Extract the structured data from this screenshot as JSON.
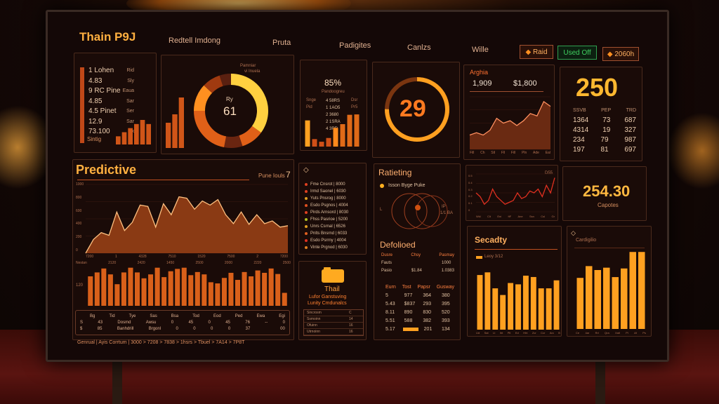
{
  "header": {
    "title": "Thain P9J",
    "nav": [
      "Redtell Imdong",
      "Pruta",
      "Padigites",
      "Canlzs",
      "Wille"
    ],
    "buttons": [
      {
        "label": "Raid",
        "icon": "diamond-icon"
      },
      {
        "label": "Used Off"
      },
      {
        "label": "2060h",
        "icon": "diamond-icon"
      }
    ]
  },
  "colors": {
    "accent": "#ff8a1c",
    "yellow": "#ffc533",
    "bar": "#e0661a",
    "green": "#36c060",
    "bg": "#140807"
  },
  "listA": {
    "rows": [
      [
        "1 Lohen",
        "Rid"
      ],
      [
        "4.83",
        "Sly"
      ],
      [
        "9 RC Pine",
        "Eaua"
      ],
      [
        "4.85",
        "Sar"
      ],
      [
        "4.5 Pinet",
        "Ser"
      ],
      [
        "12.9",
        "Sar"
      ],
      [
        "73.100",
        "Ex"
      ]
    ],
    "footer": "Sintig",
    "bars": [
      2,
      3,
      4,
      5,
      6,
      5
    ]
  },
  "donutB": {
    "caption": "Pamniar",
    "caption2": "vi Inuela",
    "label": "Ry",
    "value": "61",
    "bars": [
      3,
      4,
      6
    ],
    "slices": [
      35,
      10,
      8,
      22,
      12,
      8,
      5
    ]
  },
  "widgetC": {
    "value": "85%",
    "subtitle": "Pandoogreu",
    "left": [
      "Snge",
      "Pid"
    ],
    "right": [
      "Dsr",
      "Pr5"
    ],
    "rows": [
      "4 58RS",
      "1 1AO5",
      "2 3680",
      "2 1SRA",
      "4 3RR"
    ],
    "bars": [
      7,
      2,
      1.3,
      2.3,
      5,
      6,
      8.5,
      8.6
    ]
  },
  "ring": {
    "value": "29",
    "fraction": 0.75
  },
  "widgetE": {
    "title": "Arghia",
    "left": "1,909",
    "right": "$1,800",
    "series": [
      3,
      3.5,
      3,
      4,
      6.5,
      5.5,
      6,
      5,
      6,
      7.5,
      7,
      10,
      9
    ],
    "ticks": [
      "Fill",
      "Ch",
      "Stl",
      "Fll",
      "Fill",
      "Pln",
      "Ade",
      "Eal"
    ]
  },
  "widgetF": {
    "value": "250",
    "headers": [
      "SSVB",
      "PEP",
      "TRD"
    ],
    "rows": [
      [
        "1364",
        "73",
        "687"
      ],
      [
        "4314",
        "19",
        "327"
      ],
      [
        "234",
        "79",
        "987"
      ],
      [
        "197",
        "81",
        "697"
      ]
    ]
  },
  "predictive": {
    "title": "Predictive",
    "note": "Pune Iouls",
    "note_value": "7",
    "yticks": [
      "1000",
      "800",
      "600",
      "400",
      "200",
      "0"
    ],
    "series": [
      0,
      200,
      300,
      260,
      600,
      330,
      450,
      700,
      680,
      380,
      720,
      560,
      820,
      800,
      640,
      760,
      700,
      780,
      560,
      430,
      600,
      420,
      560,
      430,
      470,
      380,
      400
    ],
    "xticks": [
      "7200",
      "1",
      "4328",
      "7510",
      "1520",
      "7500",
      "2",
      "7200"
    ],
    "xticks2": [
      "Nestan",
      "2120",
      "2420",
      "1450",
      "2500",
      "2000",
      "2220",
      "2500"
    ],
    "bar_ytick": "120",
    "bars": [
      75,
      85,
      95,
      80,
      55,
      85,
      97,
      85,
      70,
      80,
      97,
      73,
      88,
      94,
      97,
      78,
      86,
      80,
      60,
      57,
      71,
      84,
      66,
      86,
      75,
      90,
      84,
      95,
      81,
      33
    ],
    "table": {
      "headers": [
        "Bg",
        "Tid",
        "Tye",
        "Sas",
        "Bsa",
        "Tod",
        "Eod",
        "Ped",
        "Ewa",
        "Egi"
      ],
      "rows": [
        [
          "S",
          "43",
          "Dosmd",
          "Awsu",
          "0",
          "45",
          "0",
          "45",
          "76",
          "--",
          "0"
        ],
        [
          "$",
          "85",
          "Banhdrill",
          "Brgonl",
          "0",
          "0",
          "0",
          "0",
          "37",
          "",
          "00"
        ]
      ]
    },
    "footer": "Genrual | Ayis Corrtum | 3000 > 7208 > 7838 > 1hsrs > Tbuel > 7A14 > 7P8T"
  },
  "listG": {
    "rows": [
      "Fme Cnsrot | 8000",
      "Irmd Saonel | 6030",
      "Yuts Pnsrog | 8000",
      "Esdo Psgnos | 4004",
      "Pirds Arnsord | 8030",
      "Fhss Pasrioe | 5200",
      "Unrs Csrnal | 6526",
      "Pnlts Bnsrnd | 6033",
      "Esdo Psrrny | 4004",
      "Vinte Prgnod | 6030"
    ],
    "dots": [
      "#e04020",
      "#e04020",
      "#e0a020",
      "#e05020",
      "#e04020",
      "#b0c020",
      "#e0a020",
      "#e06020",
      "#e03020",
      "#e08020"
    ]
  },
  "ratieting": {
    "title": "Ratieting",
    "legend": "Isson Byge Puke",
    "left": "L",
    "right": "IP",
    "right2": "1/1 BA"
  },
  "defolioed": {
    "title": "Defolioed",
    "headers": [
      "Dusre",
      "Chsy",
      "Pasmay"
    ],
    "rows": [
      [
        "Fauts",
        "",
        "1000"
      ],
      [
        "Pasio",
        "$1.84",
        "1.0383"
      ]
    ],
    "headers2": [
      "Eurn",
      "Tost",
      "Papsr",
      "Gusway"
    ],
    "rows2": [
      [
        "5",
        "977",
        "364",
        "380"
      ],
      [
        "5.43",
        "$837",
        "293",
        "395"
      ],
      [
        "8.11",
        "890",
        "830",
        "520"
      ],
      [
        "5.51",
        "588",
        "382",
        "393"
      ],
      [
        "5.17",
        "",
        "201",
        "134"
      ]
    ]
  },
  "thail": {
    "title": "Thail",
    "sub1": "Lufor Ganstuving",
    "sub2": "Lunity Cmdunalcs",
    "icon": "folder-icon",
    "rows": [
      [
        "Sincrosm",
        "C"
      ],
      [
        "Ssmoinn",
        "14"
      ],
      [
        "Ofuinn",
        "16"
      ],
      [
        "Utrnoinn",
        "16"
      ]
    ]
  },
  "lineH": {
    "label": "D55",
    "yticks": [
      "0.5",
      "0.4",
      "0.3",
      "0.2",
      "0.1",
      "0"
    ],
    "series": [
      5,
      4,
      2,
      3,
      6,
      4,
      3,
      2,
      2.5,
      3,
      5,
      3.5,
      4,
      5.5,
      5,
      6,
      4,
      7,
      5,
      9
    ],
    "xticks": [
      "Wkl",
      "Clt",
      "Eni",
      "ftF",
      "Ane",
      "Ssn",
      "Csl",
      "Gr"
    ]
  },
  "kpi": {
    "value": "254.30",
    "label": "Capotes"
  },
  "secadty": {
    "title": "Secadty",
    "legend": "Leoy 3/12",
    "bars": [
      8.2,
      8.6,
      6.2,
      5.2,
      7,
      6.8,
      8.1,
      7.9,
      6.2,
      6.2,
      7.4
    ],
    "xticks": [
      "Ud",
      "Sat",
      "Lt",
      "Iht",
      "Plt",
      "Ed",
      "Hht",
      "Zcr",
      "Ccr",
      "Arc",
      "B"
    ]
  },
  "cardig": {
    "title": "Cardigilio",
    "bars": [
      6.5,
      8,
      7.5,
      7.8,
      6.6,
      7.7,
      9.8,
      9.8
    ],
    "xticks": [
      "Ce",
      "4ar",
      "Rrl",
      "Qra",
      "Xatl",
      "Pl",
      "Af",
      "Ps"
    ]
  }
}
